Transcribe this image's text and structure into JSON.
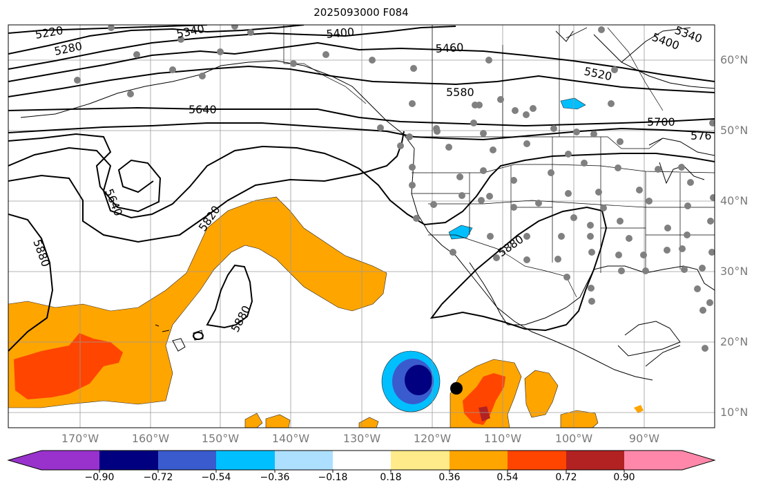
{
  "title": "2025093000 F084",
  "map": {
    "lon_labels": [
      "170°W",
      "160°W",
      "150°W",
      "140°W",
      "130°W",
      "120°W",
      "110°W",
      "100°W",
      "90°W"
    ],
    "lat_labels": [
      "60°N",
      "50°N",
      "40°N",
      "30°N",
      "20°N",
      "10°N"
    ],
    "contour_labels": [
      "5220",
      "5280",
      "5340",
      "5400",
      "5460",
      "5520",
      "5580",
      "5640",
      "5700",
      "576",
      "5340",
      "5400",
      "5640",
      "5820",
      "5880",
      "5880",
      "5880"
    ],
    "colors": {
      "orange": "#FFA500",
      "red_orange": "#FF4500",
      "dark_red": "#B22222",
      "navy": "#000080",
      "royal_blue": "#3A5BCD",
      "deep_sky": "#00BFFF",
      "light_blue": "#ADDFFF",
      "station": "#808080"
    }
  },
  "colorbar": {
    "ticks": [
      "−0.90",
      "−0.72",
      "−0.54",
      "−0.36",
      "−0.18",
      "0.18",
      "0.36",
      "0.54",
      "0.72",
      "0.90"
    ],
    "colors": [
      "#9932CC",
      "#000080",
      "#3A5BCD",
      "#00BFFF",
      "#ADDFFF",
      "#FFFFFF",
      "#FFEB8A",
      "#FFA500",
      "#FF4500",
      "#B22222",
      "#FF88AA"
    ]
  }
}
